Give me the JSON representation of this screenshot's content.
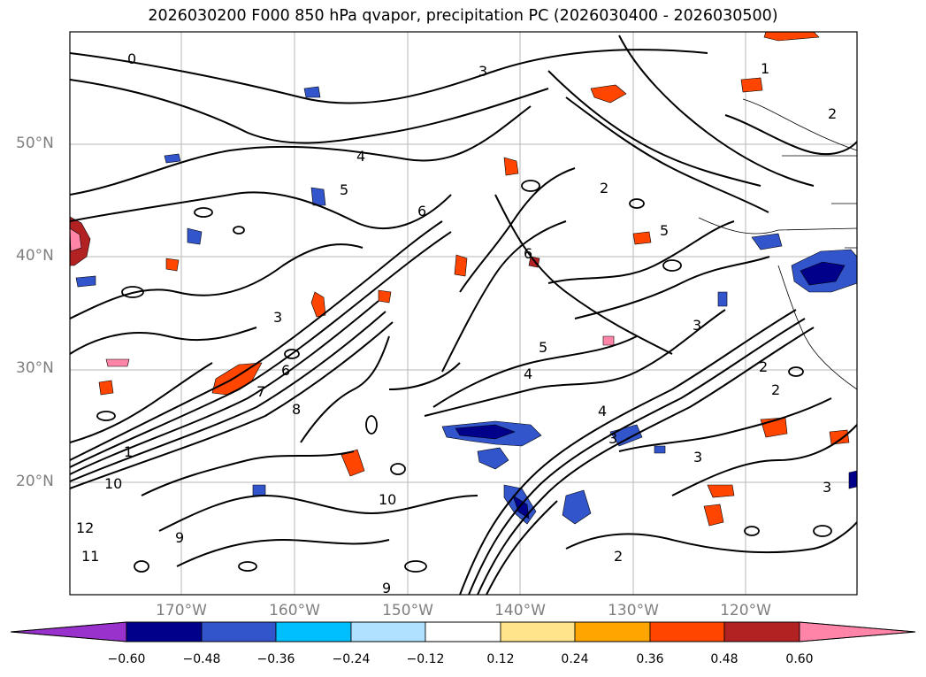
{
  "title": "2026030200 F000 850 hPa qvapor, precipitation PC (2026030400 - 2026030500)",
  "lat_labels": [
    "50°N",
    "40°N",
    "30°N",
    "20°N"
  ],
  "lon_labels": [
    "170°W",
    "160°W",
    "150°W",
    "140°W",
    "130°W",
    "120°W"
  ],
  "colorbar": {
    "ticks": [
      "−0.60",
      "−0.48",
      "−0.36",
      "−0.24",
      "−0.12",
      "0.12",
      "0.24",
      "0.36",
      "0.48",
      "0.60"
    ],
    "colors": [
      "#9932cc",
      "#00008b",
      "#3355cc",
      "#00bfff",
      "#b0e2ff",
      "#ffffff",
      "#ffe48a",
      "#ffa500",
      "#ff4500",
      "#b22222",
      "#ff85a8"
    ]
  },
  "contour_labels": [
    "3",
    "1",
    "2",
    "4",
    "5",
    "6",
    "0",
    "3",
    "2",
    "6",
    "5",
    "4",
    "3",
    "1",
    "12",
    "11",
    "10",
    "9",
    "8",
    "7",
    "6",
    "9",
    "10",
    "2",
    "3",
    "2",
    "3",
    "2",
    "4",
    "3",
    "5"
  ]
}
